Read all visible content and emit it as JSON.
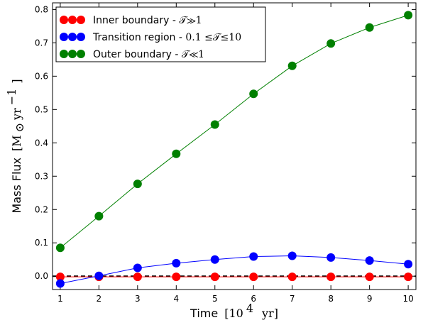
{
  "chart_data": {
    "type": "line",
    "xlabel": "Time",
    "xlabel_unit": "[10",
    "xlabel_unit_sup": "4",
    "xlabel_unit_tail": "yr]",
    "ylabel": "Mass Flux",
    "ylabel_unit": "[M",
    "ylabel_unit_sub": "⊙",
    "ylabel_unit_mid": " yr",
    "ylabel_unit_sup": "−1",
    "ylabel_unit_tail": "]",
    "xlim": [
      0.8,
      10.2
    ],
    "ylim": [
      -0.04,
      0.82
    ],
    "x_ticks": [
      1,
      2,
      3,
      4,
      5,
      6,
      7,
      8,
      9,
      10
    ],
    "y_ticks": [
      0.0,
      0.1,
      0.2,
      0.3,
      0.4,
      0.5,
      0.6,
      0.7,
      0.8
    ],
    "y_tick_labels": [
      "0.0",
      "0.1",
      "0.2",
      "0.3",
      "0.4",
      "0.5",
      "0.6",
      "0.7",
      "0.8"
    ],
    "reference_line": {
      "y": 0.0,
      "style": "dashed",
      "color": "#000000"
    },
    "legend_position": "top-left",
    "x": [
      1,
      2,
      3,
      4,
      5,
      6,
      7,
      8,
      9,
      10
    ],
    "series": [
      {
        "name": "Inner boundary - ",
        "name_math": "𝒯≫1",
        "color": "#ff0000",
        "values": [
          -0.002,
          -0.002,
          -0.002,
          -0.002,
          -0.002,
          -0.002,
          -0.002,
          -0.002,
          -0.002,
          -0.002
        ]
      },
      {
        "name": "Transition region - ",
        "name_math": "0.1 ≤𝒯≤10",
        "color": "#0000ff",
        "values": [
          -0.022,
          0.001,
          0.025,
          0.039,
          0.05,
          0.059,
          0.061,
          0.056,
          0.047,
          0.036
        ]
      },
      {
        "name": "Outer boundary - ",
        "name_math": "𝒯≪1",
        "color": "#008000",
        "values": [
          0.085,
          0.18,
          0.277,
          0.367,
          0.455,
          0.547,
          0.631,
          0.698,
          0.746,
          0.783
        ]
      }
    ]
  }
}
